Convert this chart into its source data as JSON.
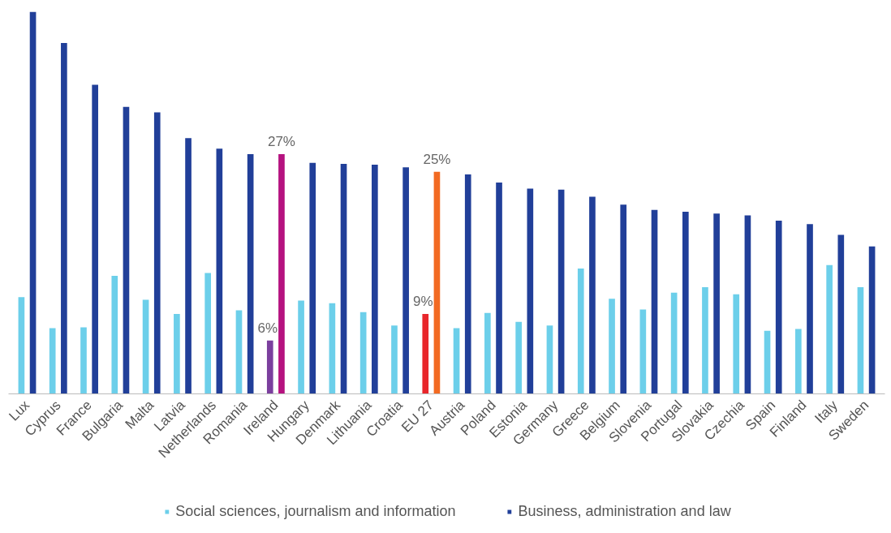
{
  "chart_data": {
    "type": "bar",
    "categories": [
      "Lux",
      "Cyprus",
      "France",
      "Bulgaria",
      "Malta",
      "Latvia",
      "Netherlands",
      "Romania",
      "Ireland",
      "Hungary",
      "Denmark",
      "Lithuania",
      "Croatia",
      "EU 27",
      "Austria",
      "Poland",
      "Estonia",
      "Germany",
      "Greece",
      "Belgium",
      "Slovenia",
      "Portugal",
      "Slovakia",
      "Czechia",
      "Spain",
      "Finland",
      "Italy",
      "Sweden"
    ],
    "series": [
      {
        "name": "Social sciences, journalism and information",
        "color": "#6ccfea",
        "colors": [
          "#6ccfea",
          "#6ccfea",
          "#6ccfea",
          "#6ccfea",
          "#6ccfea",
          "#6ccfea",
          "#6ccfea",
          "#6ccfea",
          "#7b3f9e",
          "#6ccfea",
          "#6ccfea",
          "#6ccfea",
          "#6ccfea",
          "#e8262b",
          "#6ccfea",
          "#6ccfea",
          "#6ccfea",
          "#6ccfea",
          "#6ccfea",
          "#6ccfea",
          "#6ccfea",
          "#6ccfea",
          "#6ccfea",
          "#6ccfea",
          "#6ccfea",
          "#6ccfea",
          "#6ccfea",
          "#6ccfea"
        ],
        "values": [
          10.9,
          7.4,
          7.5,
          13.3,
          10.6,
          9.0,
          13.6,
          9.4,
          6,
          10.5,
          10.2,
          9.2,
          7.7,
          9,
          7.4,
          9.1,
          8.1,
          7.7,
          14.1,
          10.7,
          9.5,
          11.4,
          12.0,
          11.2,
          7.1,
          7.3,
          14.5,
          12.0
        ],
        "value_labels": [
          null,
          null,
          null,
          null,
          null,
          null,
          null,
          null,
          "6%",
          null,
          null,
          null,
          null,
          "9%",
          null,
          null,
          null,
          null,
          null,
          null,
          null,
          null,
          null,
          null,
          null,
          null,
          null,
          null
        ]
      },
      {
        "name": "Business, administration and law",
        "color": "#213f99",
        "colors": [
          "#213f99",
          "#213f99",
          "#213f99",
          "#213f99",
          "#213f99",
          "#213f99",
          "#213f99",
          "#213f99",
          "#b5127f",
          "#213f99",
          "#213f99",
          "#213f99",
          "#213f99",
          "#f26a22",
          "#213f99",
          "#213f99",
          "#213f99",
          "#213f99",
          "#213f99",
          "#213f99",
          "#213f99",
          "#213f99",
          "#213f99",
          "#213f99",
          "#213f99",
          "#213f99",
          "#213f99",
          "#213f99"
        ],
        "values": [
          43.0,
          39.5,
          34.8,
          32.3,
          31.7,
          28.8,
          27.6,
          27.0,
          27,
          26.0,
          25.9,
          25.8,
          25.5,
          25,
          24.7,
          23.8,
          23.1,
          23.0,
          22.2,
          21.3,
          20.7,
          20.5,
          20.3,
          20.1,
          19.5,
          19.1,
          17.9,
          16.6
        ],
        "value_labels": [
          null,
          null,
          null,
          null,
          null,
          null,
          null,
          null,
          "27%",
          null,
          null,
          null,
          null,
          "25%",
          null,
          null,
          null,
          null,
          null,
          null,
          null,
          null,
          null,
          null,
          null,
          null,
          null,
          null
        ]
      }
    ],
    "ylim": [
      0,
      43.2
    ],
    "tick_labels": "x",
    "legend": "bottom"
  }
}
